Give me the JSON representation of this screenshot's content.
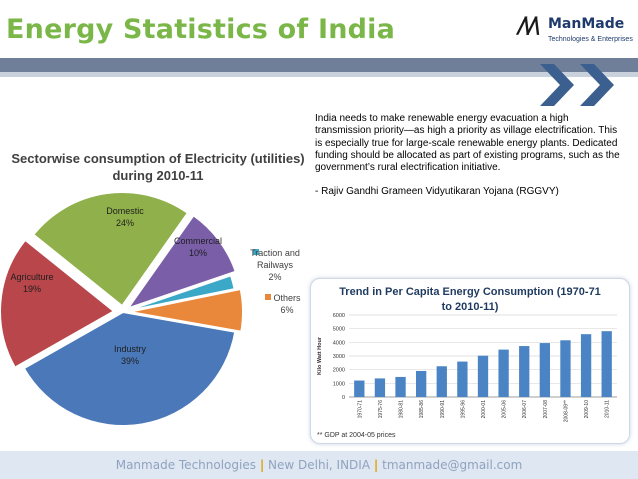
{
  "slide": {
    "title": "Energy Statistics of India",
    "logo": {
      "mark": "/\\/\\",
      "name": "ManMade",
      "tagline": "Technologies & Enterprises"
    }
  },
  "quote": {
    "paragraph": "India needs to make renewable energy evacuation a high transmission priority—as high a priority as village electrification. This is especially true for large-scale renewable energy plants. Dedicated funding should be allocated as part of existing programs, such as the government’s rural electrification initiative.",
    "attribution": "- Rajiv Gandhi Grameen Vidyutikaran Yojana (RGGVY)"
  },
  "footer": {
    "company": "Manmade Technologies",
    "location": "New Delhi, INDIA",
    "email": "tmanmade@gmail.com",
    "separator": "|"
  },
  "colors": {
    "title": "#7ab648",
    "band": "#6f7f99",
    "industry": "#4a78b8",
    "agriculture": "#b8464a",
    "domestic": "#8fb04a",
    "commercial": "#7a5ea8",
    "traction": "#3aa8c6",
    "others": "#e9883a",
    "bars": "#4a84c4"
  },
  "chart_data": [
    {
      "type": "pie",
      "title": "Sectorwise consumption of Electricity (utilities) during 2010-11",
      "slices": [
        {
          "label": "Industry",
          "value": 39,
          "value_label": "39%",
          "color": "#4a78b8"
        },
        {
          "label": "Agriculture",
          "value": 19,
          "value_label": "19%",
          "color": "#b8464a"
        },
        {
          "label": "Domestic",
          "value": 24,
          "value_label": "24%",
          "color": "#8fb04a"
        },
        {
          "label": "Commercial",
          "value": 10,
          "value_label": "10%",
          "color": "#7a5ea8"
        },
        {
          "label": "Traction and Railways",
          "value": 2,
          "value_label": "2%",
          "color": "#3aa8c6"
        },
        {
          "label": "Others",
          "value": 6,
          "value_label": "6%",
          "color": "#e9883a"
        }
      ]
    },
    {
      "type": "bar",
      "title": "Trend in Per Capita Energy Consumption (1970-71 to 2010-11)",
      "ylabel": "Kilo Watt Hour",
      "ylim": [
        0,
        6000
      ],
      "yticks": [
        0,
        1000,
        2000,
        3000,
        4000,
        5000,
        6000
      ],
      "categories": [
        "1970-71",
        "1975-76",
        "1980-81",
        "1985-86",
        "1990-91",
        "1995-96",
        "2000-01",
        "2005-06",
        "2006-07",
        "2007-08",
        "2008-09**",
        "2009-10",
        "2010-11"
      ],
      "values": [
        1204,
        1360,
        1467,
        1905,
        2249,
        2592,
        3022,
        3468,
        3727,
        3947,
        4150,
        4597,
        4816
      ],
      "footnote": "** GDP at 2004-05 prices"
    }
  ]
}
